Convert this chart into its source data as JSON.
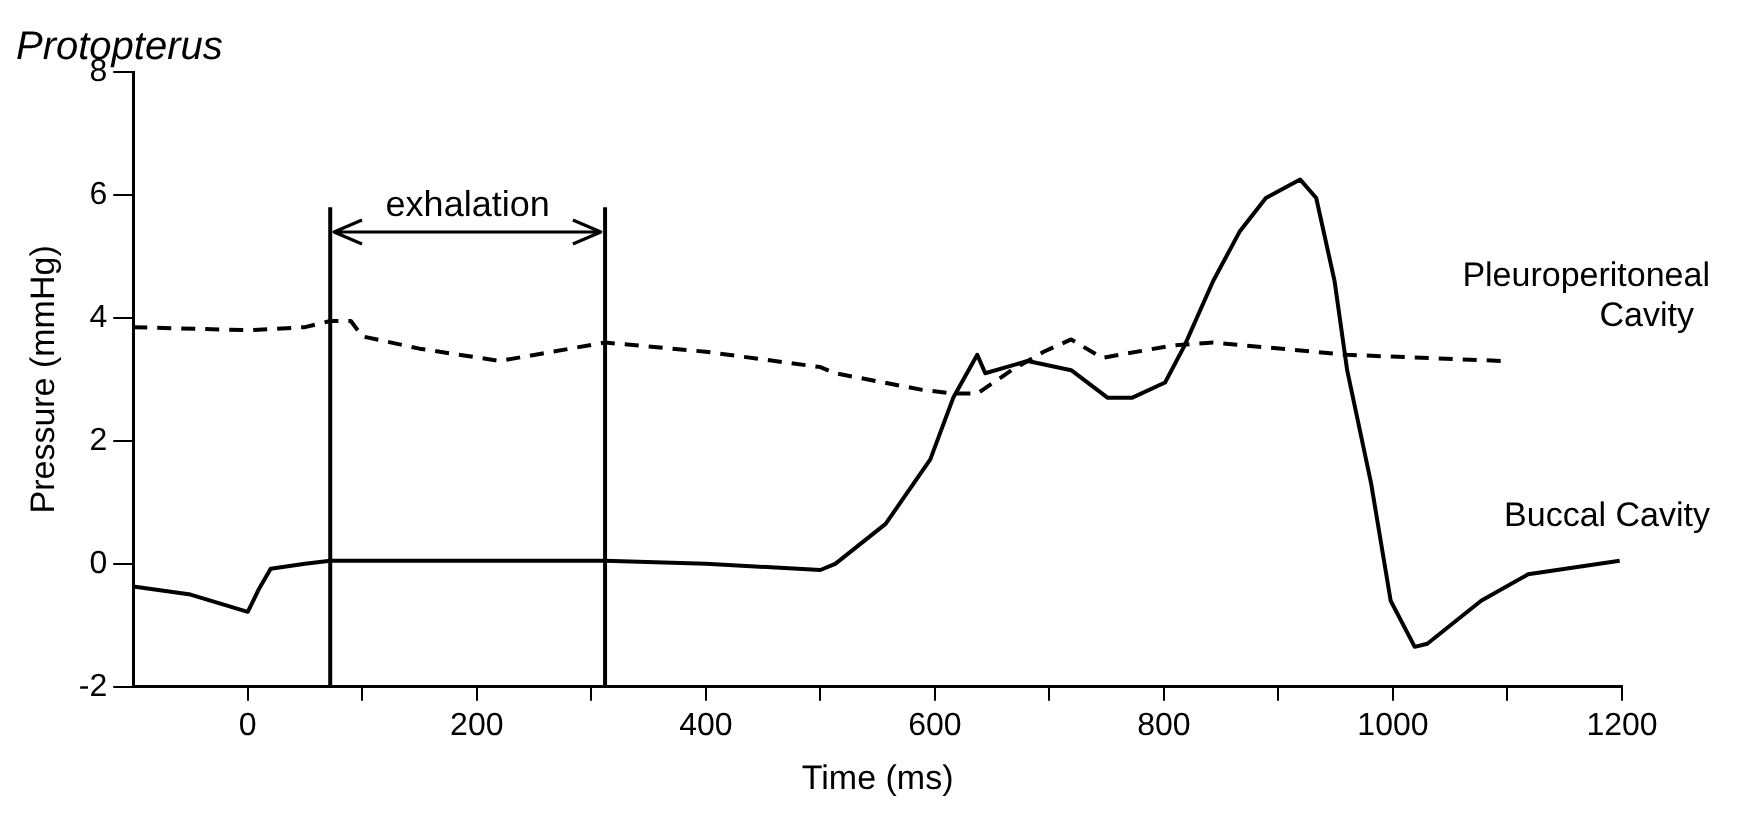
{
  "chart_data": {
    "type": "line",
    "title": "Protopterus",
    "xlabel": "Time (ms)",
    "ylabel": "Pressure (mmHg)",
    "xlim": [
      -100,
      1200
    ],
    "ylim": [
      -2,
      8
    ],
    "xticks": [
      0,
      {
        "value": 100,
        "label": null
      },
      200,
      {
        "value": 300,
        "label": null
      },
      400,
      {
        "value": 500,
        "label": null
      },
      600,
      {
        "value": 700,
        "label": null
      },
      800,
      {
        "value": 900,
        "label": null
      },
      1000,
      {
        "value": 1100,
        "label": null
      },
      1200
    ],
    "yticks": [
      -2,
      0,
      2,
      4,
      6,
      8
    ],
    "grid": false,
    "legend": false,
    "marker": "none",
    "ref_lines": [
      {
        "axis": "x",
        "value": 72,
        "color": "#000000"
      },
      {
        "axis": "x",
        "value": 312,
        "color": "#000000"
      }
    ],
    "annotations": [
      "exhalation"
    ],
    "series": [
      {
        "name": "Pleuroperitoneal Cavity",
        "color": "#000000",
        "line_style": "dashed",
        "x": [
          -100,
          0,
          50,
          72,
          90,
          100,
          150,
          220,
          312,
          400,
          500,
          513,
          589,
          616,
          637,
          667,
          695,
          719,
          746,
          807,
          843,
          960,
          1095
        ],
        "values": [
          3.85,
          3.8,
          3.85,
          3.95,
          3.95,
          3.7,
          3.5,
          3.3,
          3.6,
          3.45,
          3.2,
          3.1,
          2.83,
          2.77,
          2.77,
          3.15,
          3.45,
          3.65,
          3.35,
          3.55,
          3.6,
          3.4,
          3.3
        ]
      },
      {
        "name": "Buccal Cavity",
        "color": "#000000",
        "line_style": "solid",
        "x": [
          -100,
          -50,
          0,
          10,
          20,
          50,
          72,
          312,
          400,
          500,
          513,
          557,
          596,
          616,
          637,
          644,
          681,
          719,
          751,
          772,
          801,
          818,
          843,
          866,
          889,
          919,
          933,
          949,
          960,
          981,
          998,
          1019,
          1030,
          1077,
          1118,
          1198
        ],
        "values": [
          -0.37,
          -0.5,
          -0.78,
          -0.4,
          -0.08,
          0,
          0.05,
          0.05,
          0,
          -0.1,
          0,
          0.65,
          1.7,
          2.7,
          3.4,
          3.1,
          3.3,
          3.15,
          2.7,
          2.7,
          2.95,
          3.55,
          4.6,
          5.4,
          5.95,
          6.25,
          5.95,
          4.6,
          3.15,
          1.3,
          -0.6,
          -1.35,
          -1.3,
          -0.6,
          -0.17,
          0.05
        ]
      }
    ]
  }
}
